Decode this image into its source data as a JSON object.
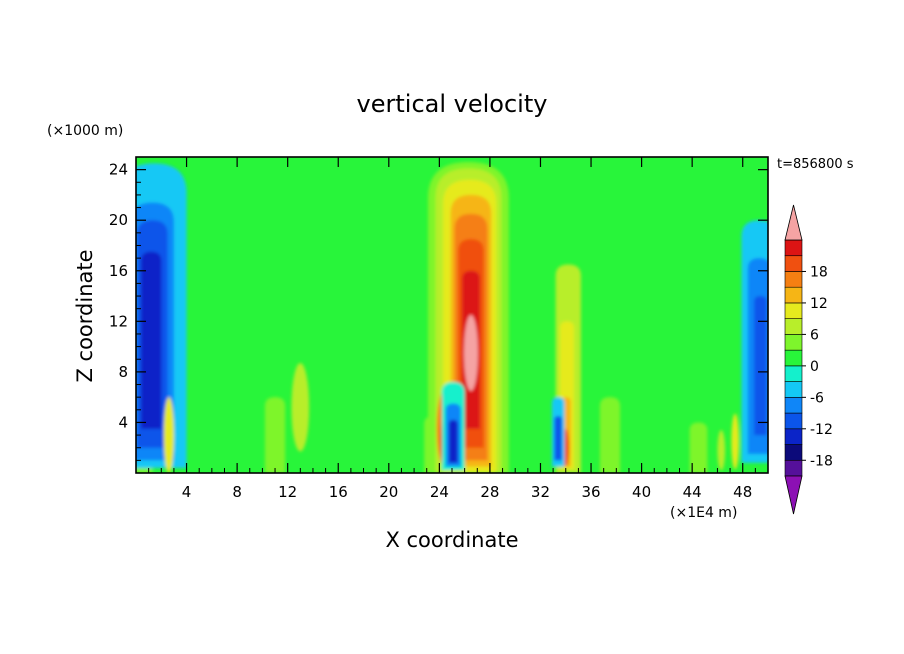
{
  "chart_data": {
    "type": "heatmap",
    "title": "vertical velocity",
    "xlabel": "X coordinate",
    "ylabel": "Z coordinate",
    "x_unit": "(×1E4 m)",
    "y_unit": "(×1000 m)",
    "time_label": "t=856800 s",
    "xlim": [
      0,
      50
    ],
    "ylim": [
      0,
      25
    ],
    "x_ticks": [
      4,
      8,
      12,
      16,
      20,
      24,
      28,
      32,
      36,
      40,
      44,
      48
    ],
    "y_ticks": [
      4,
      8,
      12,
      16,
      20,
      24
    ],
    "colorbar": {
      "levels": [
        -21,
        -18,
        -15,
        -12,
        -9,
        -6,
        -3,
        0,
        3,
        6,
        9,
        12,
        15,
        18,
        21
      ],
      "tick_labels": [
        18,
        12,
        6,
        0,
        -6,
        -12,
        -18
      ],
      "colors": [
        "#55109a",
        "#0c0a7a",
        "#0b24c8",
        "#0b55ea",
        "#0f86f8",
        "#14c8f5",
        "#14f0cc",
        "#28f53a",
        "#7ef52c",
        "#b8ee2a",
        "#e6ea1e",
        "#f6b515",
        "#f57f12",
        "#f05010",
        "#dc1414",
        "#f5a3a3"
      ],
      "extend_low_color": "#8c10b4",
      "extend_high_color": "#f5a3a3"
    },
    "features": [
      {
        "name": "left-boundary-downdraft",
        "x": 1.3,
        "z_range": [
          0.5,
          21
        ],
        "min_value": -15
      },
      {
        "name": "central-updraft",
        "x": 26.5,
        "z_range": [
          0,
          24.5
        ],
        "max_value": 21
      },
      {
        "name": "central-downdraft",
        "x": 25.1,
        "z_range": [
          0,
          7
        ],
        "min_value": -15
      },
      {
        "name": "secondary-updraft",
        "x": 34.2,
        "z_range": [
          0,
          16.5
        ],
        "max_value": 15
      },
      {
        "name": "secondary-downdraft",
        "x": 33.4,
        "z_range": [
          0.5,
          6
        ],
        "min_value": -12
      },
      {
        "name": "right-boundary-downdraft",
        "x": 49.2,
        "z_range": [
          1.5,
          17
        ],
        "min_value": -12
      }
    ]
  }
}
